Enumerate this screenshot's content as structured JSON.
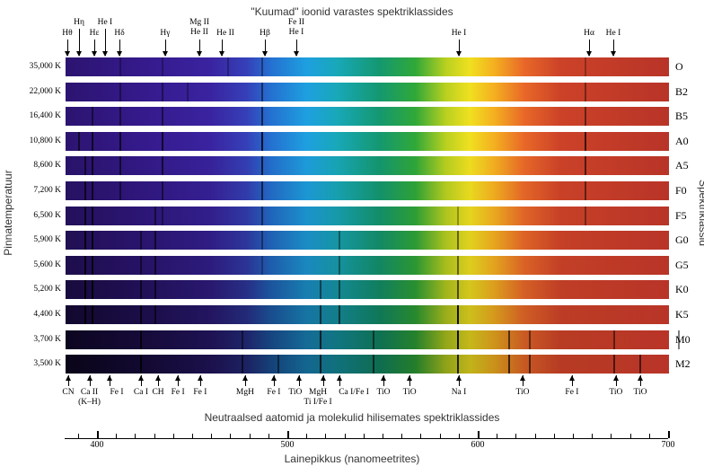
{
  "title_top": "\"Kuumad\" ioonid varastes spektriklassides",
  "title_bottom": "Neutraalsed aatomid ja molekulid hilisemates spektriklassides",
  "ylabel_left": "Pinnatemperatuur",
  "ylabel_right": "Spektriklassid",
  "xlabel": "Lainepikkus (nanomeetrites)",
  "axis": {
    "min": 383,
    "max": 700,
    "major": [
      400,
      500,
      600,
      700
    ],
    "minor_step": 10
  },
  "rows": [
    {
      "temp": "35,000 K",
      "cls": "O",
      "dim": 0,
      "lines": [
        [
          411.8,
          0.3
        ],
        [
          434,
          0.3
        ],
        [
          486.1,
          0.4
        ],
        [
          656.3,
          0.3
        ],
        [
          468.6,
          0.3
        ]
      ]
    },
    {
      "temp": "22,000 K",
      "cls": "B2",
      "dim": 0,
      "lines": [
        [
          411.8,
          0.4
        ],
        [
          434,
          0.4
        ],
        [
          486.1,
          0.5
        ],
        [
          656.3,
          0.4
        ],
        [
          447.1,
          0.3
        ]
      ]
    },
    {
      "temp": "16,400 K",
      "cls": "B5",
      "dim": 0,
      "lines": [
        [
          397,
          0.5
        ],
        [
          411.8,
          0.5
        ],
        [
          434,
          0.5
        ],
        [
          486.1,
          0.6
        ],
        [
          656.3,
          0.5
        ]
      ]
    },
    {
      "temp": "10,800 K",
      "cls": "A0",
      "dim": 0,
      "lines": [
        [
          390,
          0.6
        ],
        [
          397,
          0.7
        ],
        [
          411.8,
          0.7
        ],
        [
          434,
          0.7
        ],
        [
          486.1,
          0.8
        ],
        [
          656.3,
          0.7
        ]
      ]
    },
    {
      "temp": "8,600 K",
      "cls": "A5",
      "dim": 0.05,
      "lines": [
        [
          393.4,
          0.6
        ],
        [
          397,
          0.7
        ],
        [
          411.8,
          0.6
        ],
        [
          434,
          0.6
        ],
        [
          486.1,
          0.7
        ],
        [
          656.3,
          0.6
        ]
      ]
    },
    {
      "temp": "7,200 K",
      "cls": "F0",
      "dim": 0.1,
      "lines": [
        [
          393.4,
          0.7
        ],
        [
          397,
          0.7
        ],
        [
          411.8,
          0.5
        ],
        [
          434,
          0.5
        ],
        [
          486.1,
          0.6
        ],
        [
          656.3,
          0.5
        ]
      ]
    },
    {
      "temp": "6,500 K",
      "cls": "F5",
      "dim": 0.15,
      "lines": [
        [
          393.4,
          0.7
        ],
        [
          397,
          0.7
        ],
        [
          430,
          0.5
        ],
        [
          434,
          0.4
        ],
        [
          486.1,
          0.5
        ],
        [
          656.3,
          0.4
        ],
        [
          589,
          0.3
        ]
      ]
    },
    {
      "temp": "5,900 K",
      "cls": "G0",
      "dim": 0.2,
      "lines": [
        [
          393.4,
          0.8
        ],
        [
          397,
          0.8
        ],
        [
          422.7,
          0.5
        ],
        [
          430,
          0.6
        ],
        [
          486.1,
          0.4
        ],
        [
          527,
          0.4
        ],
        [
          589,
          0.5
        ]
      ]
    },
    {
      "temp": "5,600 K",
      "cls": "G5",
      "dim": 0.25,
      "lines": [
        [
          393.4,
          0.8
        ],
        [
          397,
          0.8
        ],
        [
          422.7,
          0.5
        ],
        [
          430,
          0.6
        ],
        [
          486.1,
          0.3
        ],
        [
          527,
          0.4
        ],
        [
          589,
          0.5
        ]
      ]
    },
    {
      "temp": "5,200 K",
      "cls": "K0",
      "dim": 0.35,
      "lines": [
        [
          393.4,
          0.9
        ],
        [
          397,
          0.9
        ],
        [
          422.7,
          0.6
        ],
        [
          430,
          0.6
        ],
        [
          517,
          0.5
        ],
        [
          527,
          0.5
        ],
        [
          589,
          0.6
        ]
      ]
    },
    {
      "temp": "4,400 K",
      "cls": "K5",
      "dim": 0.45,
      "lines": [
        [
          393.4,
          0.9
        ],
        [
          397,
          0.9
        ],
        [
          422.7,
          0.7
        ],
        [
          430,
          0.6
        ],
        [
          517,
          0.6
        ],
        [
          527,
          0.6
        ],
        [
          589,
          0.9
        ]
      ]
    },
    {
      "temp": "3,700 K",
      "cls": "M0",
      "dim": 0.55,
      "lines": [
        [
          422.7,
          0.8
        ],
        [
          476,
          0.5
        ],
        [
          517,
          0.7
        ],
        [
          545,
          0.5
        ],
        [
          589,
          0.9
        ],
        [
          616,
          0.6
        ],
        [
          627,
          0.5
        ],
        [
          671,
          0.5
        ],
        [
          705,
          0.5
        ]
      ]
    },
    {
      "temp": "3,500 K",
      "cls": "M2",
      "dim": 0.6,
      "lines": [
        [
          422.7,
          0.8
        ],
        [
          476,
          0.6
        ],
        [
          495,
          0.5
        ],
        [
          517,
          0.7
        ],
        [
          545,
          0.6
        ],
        [
          589,
          0.8
        ],
        [
          616,
          0.7
        ],
        [
          627,
          0.6
        ],
        [
          671,
          0.6
        ],
        [
          685,
          0.6
        ]
      ]
    }
  ],
  "top_labels": [
    {
      "text": "Hθ",
      "nm": 384.4,
      "lvl": 1
    },
    {
      "text": "Hη",
      "nm": 390.6,
      "lvl": 0
    },
    {
      "text": "Hε",
      "nm": 398.6,
      "lvl": 1
    },
    {
      "text": "He I",
      "nm": 404.2,
      "lvl": 0
    },
    {
      "text": "Hδ",
      "nm": 411.8,
      "lvl": 1
    },
    {
      "text": "Hγ",
      "nm": 435.8,
      "lvl": 1
    },
    {
      "text": "Mg II",
      "text2": "He II",
      "nm": 453.8,
      "lvl": 0
    },
    {
      "text": "He II",
      "nm": 465.6,
      "lvl": 1
    },
    {
      "text": "Hβ",
      "nm": 488.2,
      "lvl": 1
    },
    {
      "text": "Fe II",
      "text2": "He I",
      "nm": 504.7,
      "lvl": 0
    },
    {
      "text": "He I",
      "nm": 590.1,
      "lvl": 1
    },
    {
      "text": "Hα",
      "nm": 658.5,
      "lvl": 1
    },
    {
      "text": "He I",
      "nm": 671.2,
      "lvl": 1
    }
  ],
  "bottom_labels": [
    {
      "text": "CN",
      "nm": 384.9
    },
    {
      "text": "Ca II",
      "text2": "(K–H)",
      "nm": 396
    },
    {
      "text": "Fe I",
      "nm": 406.6
    },
    {
      "text": "Ca I",
      "nm": 423.1
    },
    {
      "text": "CH",
      "nm": 432.1
    },
    {
      "text": "Fe I",
      "nm": 442.5
    },
    {
      "text": "Fe I",
      "nm": 454.2
    },
    {
      "text": "MgH",
      "nm": 477.8
    },
    {
      "text": "Fe I",
      "nm": 492.9
    },
    {
      "text": "TiO",
      "nm": 506.1
    },
    {
      "text": "MgH",
      "text2": "Ti I/Fe I",
      "nm": 518.9
    },
    {
      "text": "Ca I/Fe I",
      "nm": 527.4
    },
    {
      "text": "TiO",
      "nm": 550.5
    },
    {
      "text": "TiO",
      "nm": 564.2
    },
    {
      "text": "Na I",
      "nm": 590.1
    },
    {
      "text": "TiO",
      "nm": 623.6
    },
    {
      "text": "Fe I",
      "nm": 649.5
    },
    {
      "text": "TiO",
      "nm": 672.6
    },
    {
      "text": "TiO",
      "nm": 685.4
    }
  ]
}
